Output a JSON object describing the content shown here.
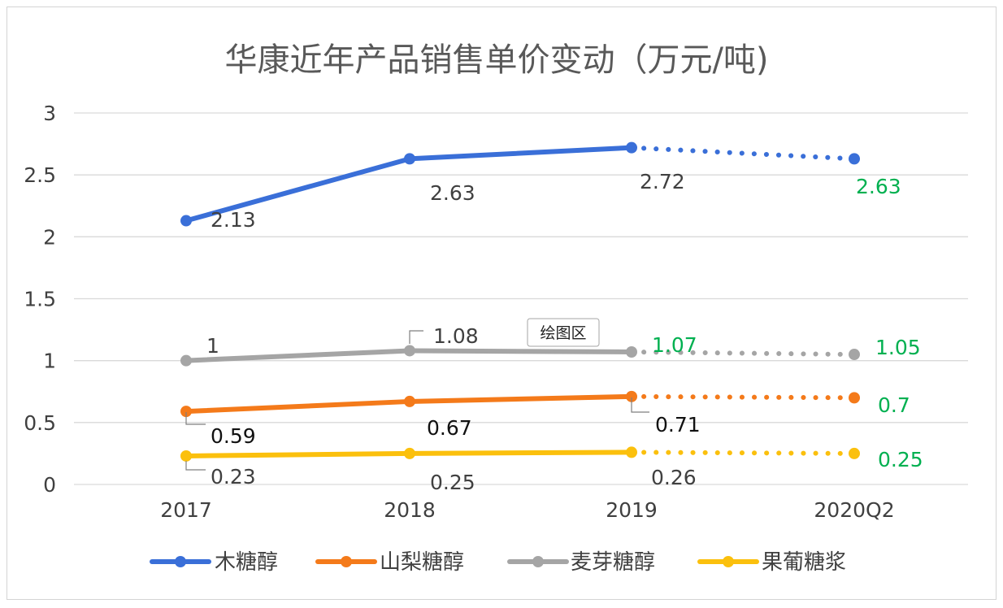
{
  "colors": {
    "木糖醇": "#3a6fd8",
    "山梨糖醇": "#f47a1a",
    "麦芽糖醇": "#a5a5a5",
    "果葡糖浆": "#fbc00d",
    "forecast_label": "#00b050"
  },
  "tooltip": "绘图区",
  "chart_data": {
    "type": "line",
    "title": "华康近年产品销售单价变动（万元/吨)",
    "categories": [
      "2017",
      "2018",
      "2019",
      "2020Q2"
    ],
    "y_ticks": [
      "0",
      "0.5",
      "1",
      "1.5",
      "2",
      "2.5",
      "3"
    ],
    "ylim": [
      0,
      3
    ],
    "grid": true,
    "legend_position": "bottom",
    "forecast_segment": "2019 to 2020Q2 dotted",
    "series": [
      {
        "name": "木糖醇",
        "values": [
          2.13,
          2.63,
          2.72,
          2.63
        ],
        "labels": [
          "2.13",
          "2.63",
          "2.72",
          "2.63"
        ]
      },
      {
        "name": "山梨糖醇",
        "values": [
          0.59,
          0.67,
          0.71,
          0.7
        ],
        "labels": [
          "0.59",
          "0.67",
          "0.71",
          "0.7"
        ]
      },
      {
        "name": "麦芽糖醇",
        "values": [
          1.0,
          1.08,
          1.07,
          1.05
        ],
        "labels": [
          "1",
          "1.08",
          "1.07",
          "1.05"
        ]
      },
      {
        "name": "果葡糖浆",
        "values": [
          0.23,
          0.25,
          0.26,
          0.25
        ],
        "labels": [
          "0.23",
          "0.25",
          "0.26",
          "0.25"
        ]
      }
    ]
  }
}
